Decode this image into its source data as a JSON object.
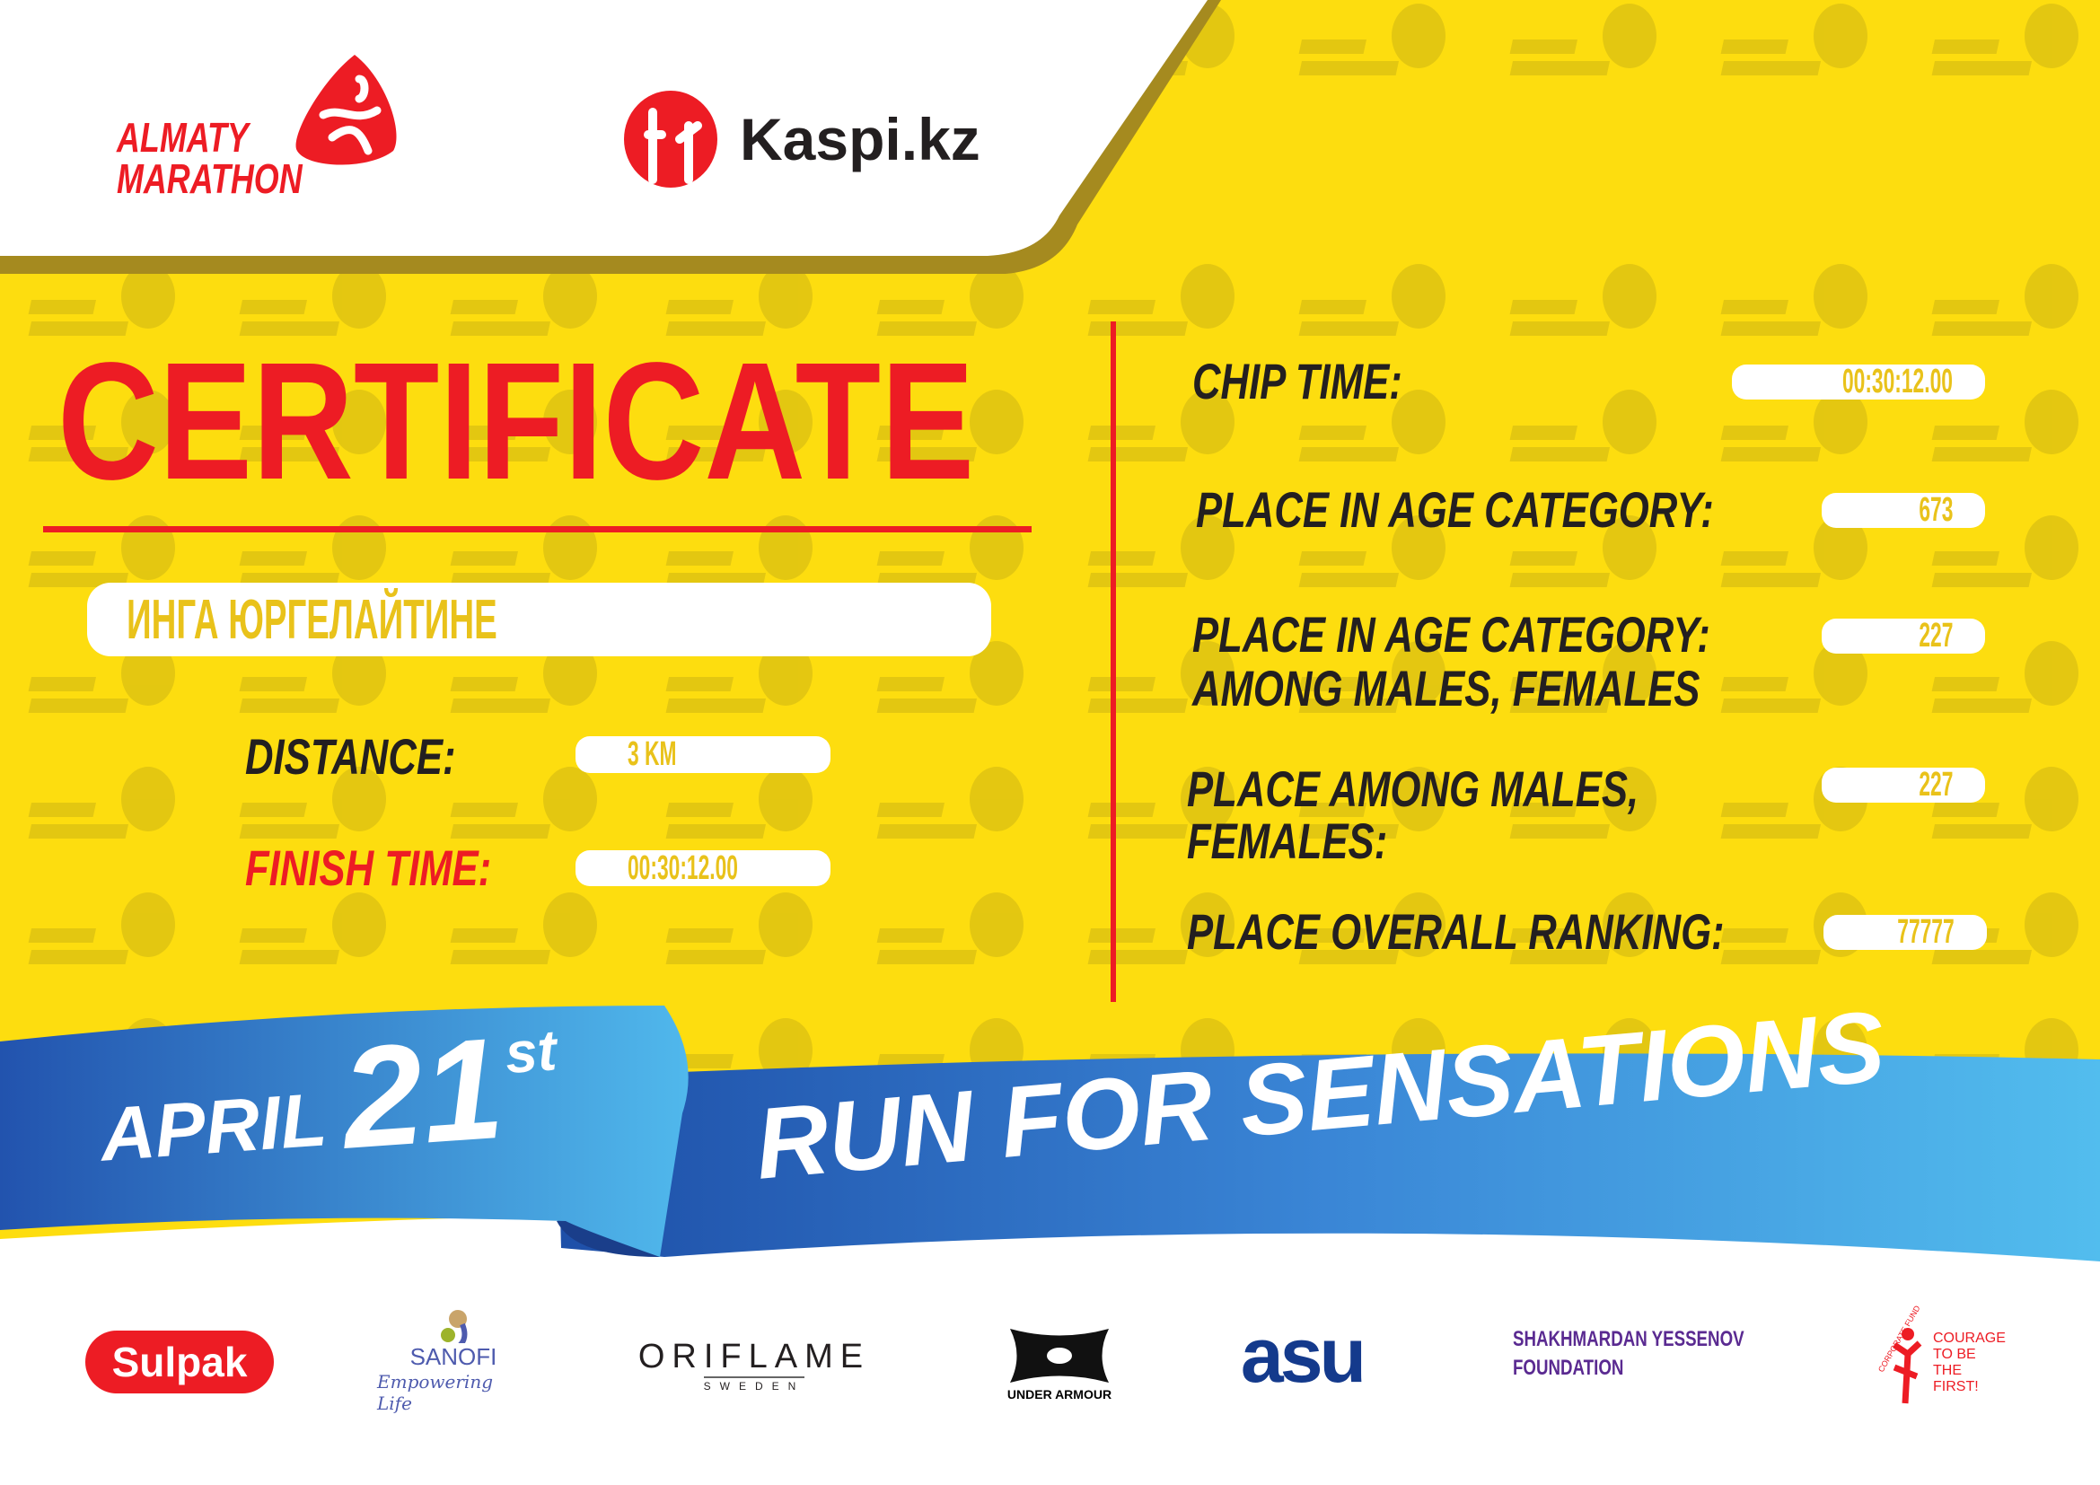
{
  "colors": {
    "background": "#FDDD0F",
    "red": "#ED1C24",
    "dark": "#231F20",
    "value": "#E9C21A",
    "ribbon": "#2B6CC4",
    "ribbon_light": "#4FB8EC"
  },
  "watermark": {
    "line1": "ALMATY",
    "line2": "MARATHON"
  },
  "header": {
    "event_logo": {
      "line1": "ALMATY",
      "line2": "MARATHON",
      "icon": "runner-drop-icon"
    },
    "sponsor_logo": {
      "text": "Kaspi.kz",
      "icon": "kaspi-people-icon"
    }
  },
  "certificate": {
    "title": "CERTIFICATE",
    "participant_name": "ИНГА ЮРГЕЛАЙТИНЕ",
    "distance": {
      "label": "DISTANCE:",
      "value": "3 KM"
    },
    "finish_time": {
      "label": "FINISH TIME:",
      "value": "00:30:12.00"
    }
  },
  "results": [
    {
      "label": [
        "CHIP TIME:"
      ],
      "value": "00:30:12.00"
    },
    {
      "label": [
        "PLACE IN AGE CATEGORY:"
      ],
      "value": "673"
    },
    {
      "label": [
        "PLACE IN AGE CATEGORY:",
        "AMONG MALES, FEMALES"
      ],
      "value": "227"
    },
    {
      "label": [
        "PLACE AMONG MALES,",
        "FEMALES:"
      ],
      "value": "227"
    },
    {
      "label": [
        "PLACE OVERALL RANKING:"
      ],
      "value": "77777"
    }
  ],
  "ribbon": {
    "month": "APRIL",
    "day": "21",
    "suffix": "st",
    "slogan": "RUN FOR SENSATIONS"
  },
  "partners": [
    {
      "name": "Sulpak"
    },
    {
      "name": "SANOFI",
      "tagline": "Empowering Life"
    },
    {
      "name": "ORIFLAME",
      "tagline": "SWEDEN"
    },
    {
      "name": "UNDER ARMOUR"
    },
    {
      "name": "asu"
    },
    {
      "name": "SHAKHMARDAN YESSENOV",
      "tagline": "FOUNDATION"
    },
    {
      "name": "COURAGE TO BE THE FIRST!",
      "tagline": "CORPORATE FUND"
    }
  ]
}
